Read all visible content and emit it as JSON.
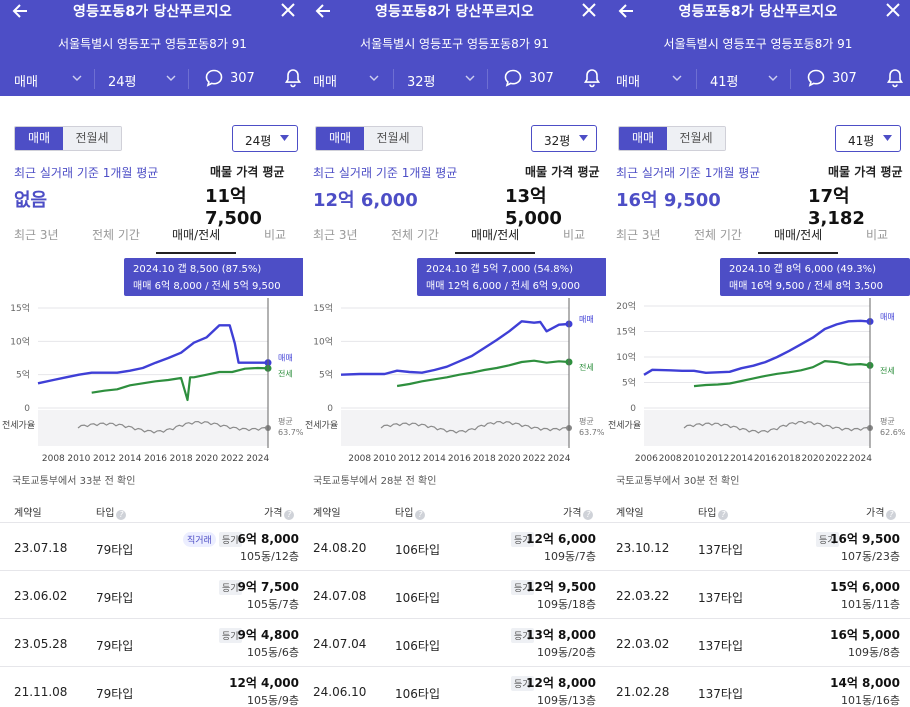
{
  "common": {
    "title": "영등포동8가 당산푸르지오",
    "address": "서울특별시 영등포구 영등포동8가 91",
    "deal_type": "매매",
    "comment_count": "307",
    "tab_sale": "매매",
    "tab_rent": "전월세",
    "recent_label": "최근 실거래 기준 1개월 평균",
    "listing_label": "매물 가격 평균",
    "tabs": [
      "최근 3년",
      "전체 기간",
      "매매/전세",
      "비교"
    ],
    "series_sale": "매매",
    "series_jeonse": "전세",
    "gap_axis": "전세가율",
    "avg_label": "평균",
    "col_date": "계약일",
    "col_type": "타입",
    "col_price": "가격",
    "registered_tag": "등기",
    "direct_tag": "직거래",
    "colors": {
      "accent": "#4d4ec6",
      "sale_line": "#3f3fd6",
      "jeonse_line": "#2e8f3e",
      "ratio_line": "#8a8a8a"
    }
  },
  "panels": [
    {
      "size": "24평",
      "recent_value": "없음",
      "listing_value": "11억 7,500",
      "tooltip_line1": "2024.10  갭 8,500 (87.5%)",
      "tooltip_line2": "매매 6억 8,000 / 전세 5억 9,500",
      "avg_ratio": "63.7%",
      "confirm": "국토교통부에서 33분 전 확인",
      "rows": [
        {
          "date": "23.07.18",
          "type": "79타입",
          "direct": "직거래",
          "reg": "등기",
          "price": "6억 8,000",
          "floor": "105동/12층"
        },
        {
          "date": "23.06.02",
          "type": "79타입",
          "reg": "등기",
          "price": "9억 7,500",
          "floor": "105동/7층"
        },
        {
          "date": "23.05.28",
          "type": "79타입",
          "reg": "등기",
          "price": "9억 4,800",
          "floor": "105동/6층"
        },
        {
          "date": "21.11.08",
          "type": "79타입",
          "reg": "",
          "price": "12억 4,000",
          "floor": "105동/9층"
        }
      ],
      "chart_data": {
        "type": "line",
        "x_ticks": [
          "2008",
          "2010",
          "2012",
          "2014",
          "2016",
          "2018",
          "2020",
          "2022",
          "2024"
        ],
        "y_ticks": [
          "0",
          "5억",
          "10억",
          "15억"
        ],
        "ylim": [
          0,
          15
        ],
        "series": [
          {
            "name": "매매",
            "points": [
              [
                2006.8,
                3.7
              ],
              [
                2008,
                4.2
              ],
              [
                2009,
                4.6
              ],
              [
                2010,
                5.0
              ],
              [
                2011,
                5.3
              ],
              [
                2012,
                5.3
              ],
              [
                2013,
                5.3
              ],
              [
                2014,
                5.6
              ],
              [
                2015,
                6.0
              ],
              [
                2016,
                6.8
              ],
              [
                2017,
                7.5
              ],
              [
                2018,
                8.3
              ],
              [
                2019,
                9.8
              ],
              [
                2020,
                10.6
              ],
              [
                2021,
                12.4
              ],
              [
                2021.8,
                12.4
              ],
              [
                2022.2,
                9.7
              ],
              [
                2022.5,
                6.8
              ],
              [
                2023,
                6.8
              ],
              [
                2024,
                6.8
              ],
              [
                2024.8,
                6.8
              ]
            ]
          },
          {
            "name": "전세",
            "points": [
              [
                2011,
                2.3
              ],
              [
                2012,
                2.6
              ],
              [
                2013,
                2.8
              ],
              [
                2014,
                3.4
              ],
              [
                2015,
                3.7
              ],
              [
                2016,
                4.0
              ],
              [
                2017,
                4.2
              ],
              [
                2018,
                4.5
              ],
              [
                2018.5,
                1.2
              ],
              [
                2018.7,
                4.6
              ],
              [
                2019,
                4.6
              ],
              [
                2020,
                5.0
              ],
              [
                2021,
                5.4
              ],
              [
                2022,
                5.4
              ],
              [
                2023,
                5.9
              ],
              [
                2024,
                6.0
              ],
              [
                2024.8,
                5.95
              ]
            ]
          }
        ]
      }
    },
    {
      "size": "32평",
      "recent_value": "12억 6,000",
      "listing_value": "13억 5,000",
      "tooltip_line1": "2024.10  갭 5억 7,000 (54.8%)",
      "tooltip_line2": "매매 12억 6,000 / 전세 6억 9,000",
      "avg_ratio": "63.7%",
      "confirm": "국토교통부에서 28분 전 확인",
      "rows": [
        {
          "date": "24.08.20",
          "type": "106타입",
          "reg": "등기",
          "price": "12억 6,000",
          "floor": "109동/7층"
        },
        {
          "date": "24.07.08",
          "type": "106타입",
          "reg": "등기",
          "price": "12억 9,500",
          "floor": "109동/18층"
        },
        {
          "date": "24.07.04",
          "type": "106타입",
          "reg": "등기",
          "price": "13억 8,000",
          "floor": "109동/20층"
        },
        {
          "date": "24.06.10",
          "type": "106타입",
          "reg": "등기",
          "price": "12억 8,000",
          "floor": "109동/13층"
        }
      ],
      "chart_data": {
        "type": "line",
        "x_ticks": [
          "2008",
          "2010",
          "2012",
          "2014",
          "2016",
          "2018",
          "2020",
          "2022",
          "2024"
        ],
        "y_ticks": [
          "0",
          "5억",
          "10억",
          "15억"
        ],
        "ylim": [
          0,
          15
        ],
        "series": [
          {
            "name": "매매",
            "points": [
              [
                2006.5,
                5.0
              ],
              [
                2008,
                5.1
              ],
              [
                2010,
                5.1
              ],
              [
                2011,
                5.6
              ],
              [
                2012,
                5.4
              ],
              [
                2013,
                5.3
              ],
              [
                2014,
                5.7
              ],
              [
                2015,
                6.2
              ],
              [
                2016,
                7.0
              ],
              [
                2017,
                7.8
              ],
              [
                2018,
                9.0
              ],
              [
                2019,
                10.2
              ],
              [
                2020,
                11.5
              ],
              [
                2021,
                13.0
              ],
              [
                2022,
                12.8
              ],
              [
                2022.5,
                12.9
              ],
              [
                2023,
                11.5
              ],
              [
                2024,
                12.5
              ],
              [
                2024.8,
                12.6
              ]
            ]
          },
          {
            "name": "전세",
            "points": [
              [
                2011,
                3.3
              ],
              [
                2012,
                3.6
              ],
              [
                2013,
                4.0
              ],
              [
                2014,
                4.3
              ],
              [
                2015,
                4.6
              ],
              [
                2016,
                5.0
              ],
              [
                2017,
                5.3
              ],
              [
                2018,
                5.7
              ],
              [
                2019,
                6.0
              ],
              [
                2020,
                6.4
              ],
              [
                2021,
                6.9
              ],
              [
                2022,
                7.1
              ],
              [
                2023,
                6.8
              ],
              [
                2024,
                7.0
              ],
              [
                2024.8,
                6.9
              ]
            ]
          }
        ]
      }
    },
    {
      "size": "41평",
      "recent_value": "16억 9,500",
      "listing_value": "17억 3,182",
      "tooltip_line1": "2024.10  갭 8억 6,000 (49.3%)",
      "tooltip_line2": "매매 16억 9,500 / 전세 8억 3,500",
      "avg_ratio": "62.6%",
      "confirm": "국토교통부에서 30분 전 확인",
      "rows": [
        {
          "date": "23.10.12",
          "type": "137타입",
          "reg": "등기",
          "price": "16억 9,500",
          "floor": "107동/23층"
        },
        {
          "date": "22.03.22",
          "type": "137타입",
          "reg": "",
          "price": "15억 6,000",
          "floor": "101동/11층"
        },
        {
          "date": "22.03.02",
          "type": "137타입",
          "reg": "",
          "price": "16억 5,000",
          "floor": "109동/8층"
        },
        {
          "date": "21.02.28",
          "type": "137타입",
          "reg": "",
          "price": "14억 8,000",
          "floor": "101동/16층"
        }
      ],
      "chart_data": {
        "type": "line",
        "x_ticks": [
          "2006",
          "2008",
          "2010",
          "2012",
          "2014",
          "2016",
          "2018",
          "2020",
          "2022",
          "2024"
        ],
        "y_ticks": [
          "0",
          "5억",
          "10억",
          "15억",
          "20억"
        ],
        "ylim": [
          0,
          20
        ],
        "series": [
          {
            "name": "매매",
            "points": [
              [
                2005.8,
                6.5
              ],
              [
                2006.5,
                7.5
              ],
              [
                2008,
                7.4
              ],
              [
                2009,
                7.3
              ],
              [
                2010,
                7.3
              ],
              [
                2011,
                6.9
              ],
              [
                2012,
                7.0
              ],
              [
                2013,
                7.1
              ],
              [
                2014,
                7.8
              ],
              [
                2015,
                8.3
              ],
              [
                2016,
                9.0
              ],
              [
                2017,
                10.0
              ],
              [
                2018,
                11.2
              ],
              [
                2019,
                12.5
              ],
              [
                2020,
                13.8
              ],
              [
                2021,
                15.5
              ],
              [
                2022,
                16.4
              ],
              [
                2023,
                17.0
              ],
              [
                2024,
                17.1
              ],
              [
                2024.8,
                16.95
              ]
            ]
          },
          {
            "name": "전세",
            "points": [
              [
                2010,
                4.3
              ],
              [
                2011,
                4.5
              ],
              [
                2012,
                4.6
              ],
              [
                2013,
                4.8
              ],
              [
                2014,
                5.3
              ],
              [
                2015,
                5.8
              ],
              [
                2016,
                6.3
              ],
              [
                2017,
                6.7
              ],
              [
                2018,
                7.0
              ],
              [
                2019,
                7.4
              ],
              [
                2020,
                8.0
              ],
              [
                2021,
                9.2
              ],
              [
                2022,
                9.0
              ],
              [
                2023,
                8.5
              ],
              [
                2024,
                8.6
              ],
              [
                2024.8,
                8.35
              ]
            ]
          }
        ]
      }
    }
  ]
}
